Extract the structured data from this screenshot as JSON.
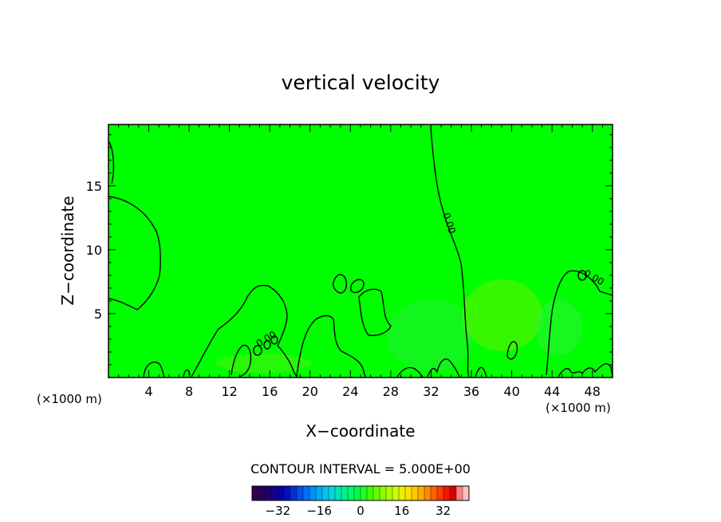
{
  "chart_data": {
    "type": "heatmap",
    "title": "vertical velocity",
    "xlabel": "X−coordinate",
    "ylabel": "Z−coordinate",
    "x_unit": "(×1000 m)",
    "x_unit_repeat": "(×1000 m)",
    "xlim": [
      0,
      50
    ],
    "ylim": [
      0,
      19.8
    ],
    "xticks": [
      4,
      8,
      12,
      16,
      20,
      24,
      28,
      32,
      36,
      40,
      44,
      48
    ],
    "yticks": [
      5,
      10,
      15
    ],
    "background_color": "#00ff00",
    "contour_interval_label": "CONTOUR INTERVAL = 5.000E+00",
    "contour_labels": [
      {
        "text": "0.00",
        "x": 33.5,
        "y": 12.0
      },
      {
        "text": "0.00",
        "x": 48.0,
        "y": 7.6
      },
      {
        "text": "0.00",
        "x": 15.8,
        "y": 2.8
      }
    ],
    "colorbar": {
      "range": [
        -42,
        42
      ],
      "ticks": [
        -32,
        -16,
        0,
        16,
        32
      ],
      "colors": [
        "#33004d",
        "#2a005e",
        "#1e0072",
        "#14008a",
        "#0a00a4",
        "#0010c0",
        "#0030d8",
        "#0050ea",
        "#0070f4",
        "#0090f8",
        "#00aaf6",
        "#00c4ee",
        "#00d8d8",
        "#00e6b8",
        "#00f090",
        "#00f868",
        "#00ff44",
        "#22ff22",
        "#44ff00",
        "#66ff00",
        "#88ff00",
        "#aaff00",
        "#ccff00",
        "#e8f000",
        "#ffe000",
        "#ffc800",
        "#ffaa00",
        "#ff8800",
        "#ff6000",
        "#ff3c00",
        "#f01800",
        "#d80000",
        "#ff8080",
        "#ffc0c0"
      ]
    }
  }
}
